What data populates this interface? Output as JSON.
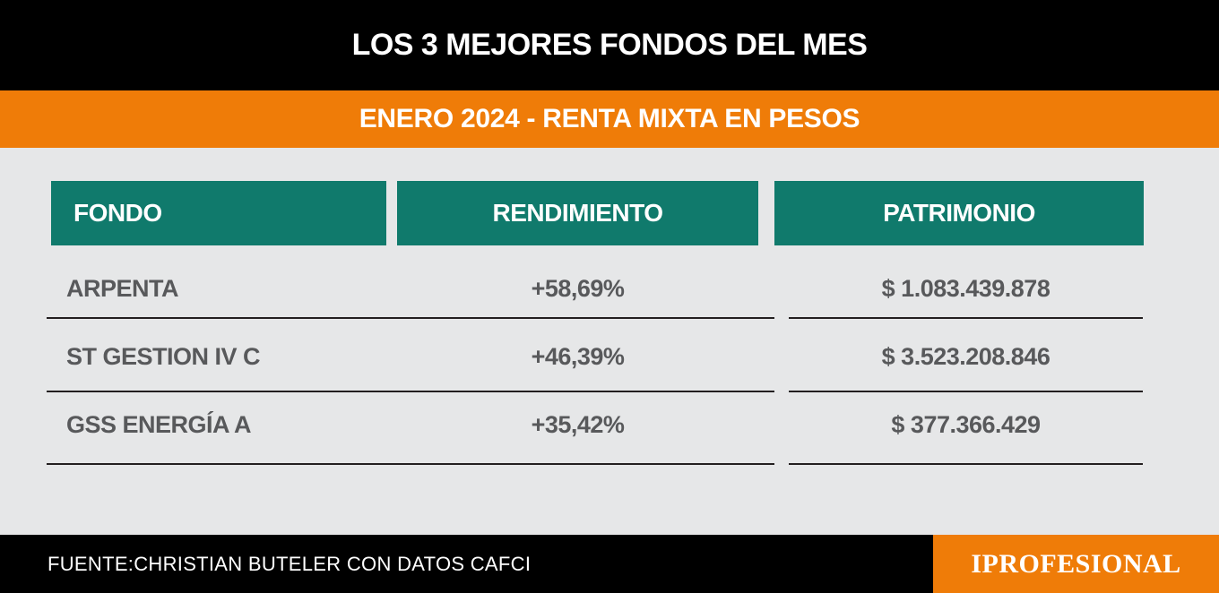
{
  "header": {
    "title": "LOS 3 MEJORES FONDOS DEL MES",
    "subtitle": "ENERO 2024 - RENTA MIXTA EN PESOS"
  },
  "table": {
    "columns": [
      "FONDO",
      "RENDIMIENTO",
      "PATRIMONIO"
    ],
    "rows": [
      {
        "fondo": "ARPENTA",
        "rendimiento": "+58,69%",
        "patrimonio": "$ 1.083.439.878"
      },
      {
        "fondo": "ST GESTION IV C",
        "rendimiento": "+46,39%",
        "patrimonio": "$ 3.523.208.846"
      },
      {
        "fondo": "GSS ENERGÍA A",
        "rendimiento": "+35,42%",
        "patrimonio": "$ 377.366.429"
      }
    ]
  },
  "footer": {
    "source": "FUENTE:CHRISTIAN BUTELER CON DATOS CAFCI",
    "brand": "IPROFESIONAL"
  },
  "colors": {
    "header_bg": "#000000",
    "accent": "#ef7c08",
    "table_header": "#107a6c",
    "body_bg": "#e6e7e8",
    "cell_text": "#58595b"
  }
}
